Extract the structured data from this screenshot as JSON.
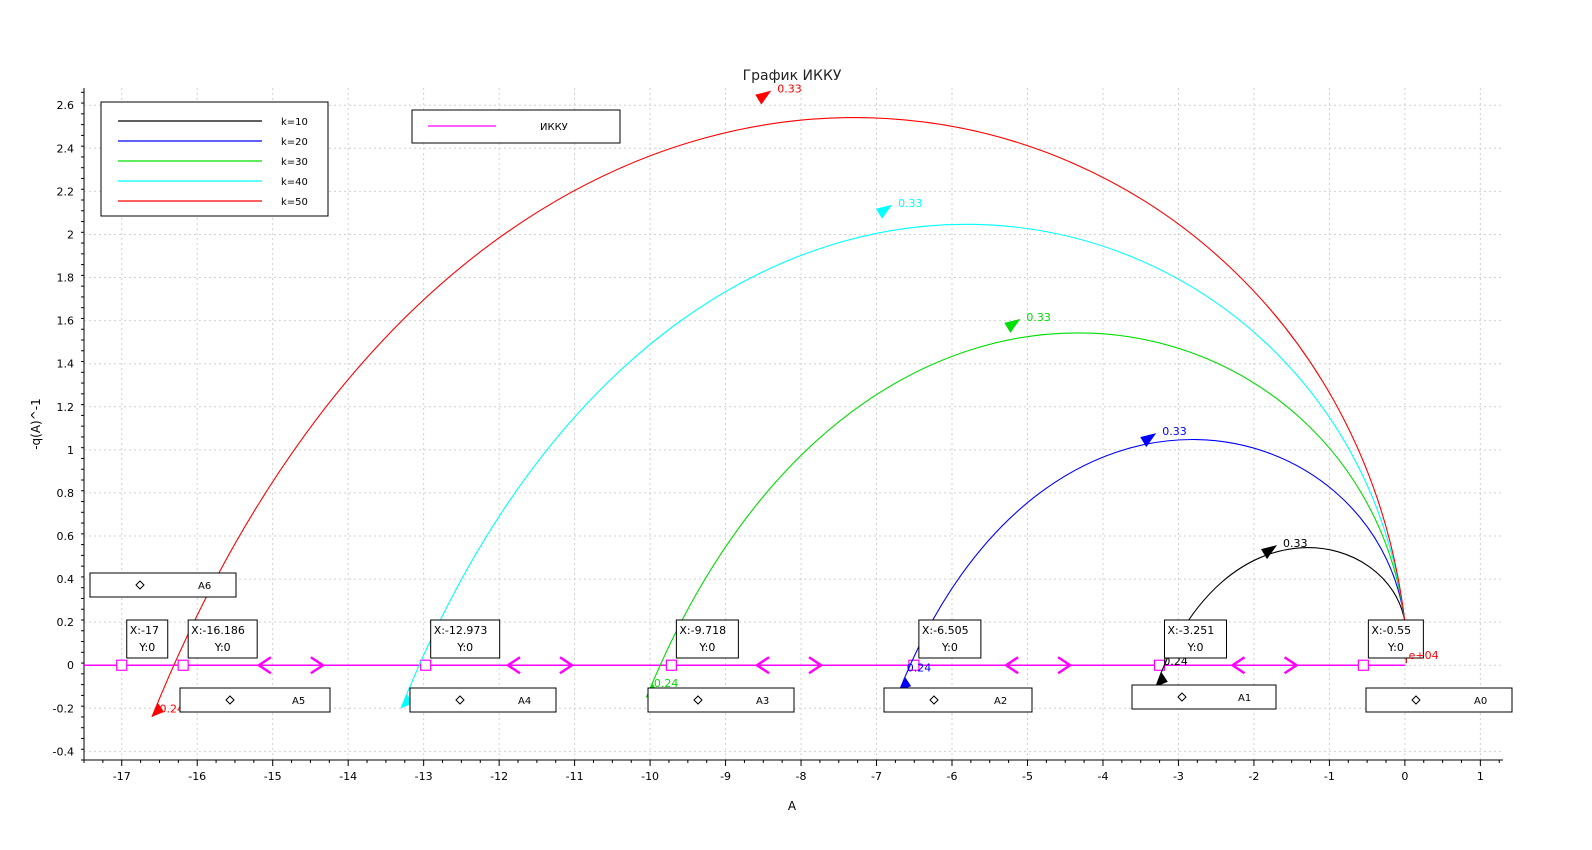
{
  "chart_data": {
    "type": "line",
    "title": "График ИККУ",
    "xlabel": "A",
    "ylabel": "-q(A)^-1",
    "xlim": [
      -17.5,
      1.3
    ],
    "ylim": [
      -0.44,
      2.68
    ],
    "xticks": [
      -17,
      -16,
      -15,
      -14,
      -13,
      -12,
      -11,
      -10,
      -9,
      -8,
      -7,
      -6,
      -5,
      -4,
      -3,
      -2,
      -1,
      0,
      1
    ],
    "xtick_labels": [
      "-17",
      "-16",
      "-15",
      "-14",
      "-13",
      "-12",
      "-11",
      "-10",
      "-9",
      "-8",
      "-7",
      "-6",
      "-5",
      "-4",
      "-3",
      "-2",
      "-1",
      "0",
      "1"
    ],
    "yticks": [
      -0.4,
      -0.2,
      0,
      0.2,
      0.4,
      0.6,
      0.8,
      1,
      1.2,
      1.4,
      1.6,
      1.8,
      2,
      2.2,
      2.4,
      2.6
    ],
    "ytick_labels": [
      "-0.4",
      "-0.2",
      "0",
      "0.2",
      "0.4",
      "0.6",
      "0.8",
      "1",
      "1.2",
      "1.4",
      "1.6",
      "1.8",
      "2",
      "2.2",
      "2.4",
      "2.6"
    ],
    "grid": true,
    "legend": {
      "position": "top-left",
      "entries": [
        "k=10",
        "k=20",
        "k=30",
        "k=40",
        "k=50"
      ]
    },
    "legend2": {
      "position": "top",
      "entries": [
        "ИККУ"
      ]
    },
    "series": [
      {
        "name": "k=10",
        "color": "#000000",
        "k": 10,
        "x_start": -3.3,
        "y_start": -0.1,
        "x_peak": -1.25,
        "y_peak": 0.57,
        "x_end": 0.0,
        "y_end": 0.2,
        "label_start": "0.24",
        "label_mid": "0.33",
        "arrow_mid": [
          -1.8,
          0.53
        ],
        "label_start_pos": [
          -3.2,
          0.0
        ]
      },
      {
        "name": "k=20",
        "color": "#0000ff",
        "k": 20,
        "x_start": -6.7,
        "y_start": -0.12,
        "x_peak": -2.4,
        "y_peak": 1.14,
        "x_end": 0.0,
        "y_end": 0.2,
        "label_start": "0.24",
        "label_mid": "0.33",
        "arrow_mid": [
          -3.4,
          1.05
        ],
        "label_start_pos": [
          -6.6,
          -0.03
        ]
      },
      {
        "name": "k=30",
        "color": "#00dd00",
        "k": 30,
        "x_start": -10.05,
        "y_start": -0.15,
        "x_peak": -3.6,
        "y_peak": 1.7,
        "x_end": 0.0,
        "y_end": 0.2,
        "label_start": "0.24",
        "label_mid": "0.33",
        "arrow_mid": [
          -5.2,
          1.58
        ],
        "label_start_pos": [
          -9.95,
          -0.1
        ]
      },
      {
        "name": "k=40",
        "color": "#00ffff",
        "k": 40,
        "x_start": -13.3,
        "y_start": -0.2,
        "x_peak": -4.85,
        "y_peak": 2.27,
        "x_end": 0.0,
        "y_end": 0.2,
        "label_start": "0.24",
        "label_mid": "0.33",
        "arrow_mid": [
          -6.9,
          2.11
        ],
        "label_start_pos": [
          -13.2,
          -0.15
        ]
      },
      {
        "name": "k=50",
        "color": "#ff0000",
        "k": 50,
        "x_start": -16.6,
        "y_start": -0.24,
        "x_peak": -6.0,
        "y_peak": 2.83,
        "x_end": 0.0,
        "y_end": 0.2,
        "label_start": "0.24",
        "label_mid": "0.33",
        "arrow_mid": [
          -8.5,
          2.64
        ],
        "label_start_pos": [
          -16.5,
          -0.22
        ]
      }
    ],
    "ikku_line": {
      "name": "ИККУ",
      "color": "#ff00ff",
      "y": 0,
      "x_from": -17.5,
      "x_to": 0.0
    },
    "points": [
      {
        "x": -17,
        "y": 0,
        "label_x": "X:-17",
        "label_y": "Y:0"
      },
      {
        "x": -16.186,
        "y": 0,
        "label_x": "X:-16.186",
        "label_y": "Y:0"
      },
      {
        "x": -12.973,
        "y": 0,
        "label_x": "X:-12.973",
        "label_y": "Y:0"
      },
      {
        "x": -9.718,
        "y": 0,
        "label_x": "X:-9.718",
        "label_y": "Y:0"
      },
      {
        "x": -6.505,
        "y": 0,
        "label_x": "X:-6.505",
        "label_y": "Y:0"
      },
      {
        "x": -3.251,
        "y": 0,
        "label_x": "X:-3.251",
        "label_y": "Y:0"
      },
      {
        "x": -0.55,
        "y": 0,
        "label_x": "X:-0.55",
        "label_y": "Y:0"
      }
    ],
    "regions": [
      {
        "label": "A6",
        "icon": "diamond-icon"
      },
      {
        "label": "A5",
        "icon": "diamond-icon"
      },
      {
        "label": "A4",
        "icon": "diamond-icon"
      },
      {
        "label": "A3",
        "icon": "diamond-icon"
      },
      {
        "label": "A2",
        "icon": "diamond-icon"
      },
      {
        "label": "A1",
        "icon": "diamond-icon"
      },
      {
        "label": "A0",
        "icon": "diamond-icon"
      }
    ],
    "annotations": [
      {
        "text": "e+04",
        "color": "#ff0000"
      }
    ]
  }
}
